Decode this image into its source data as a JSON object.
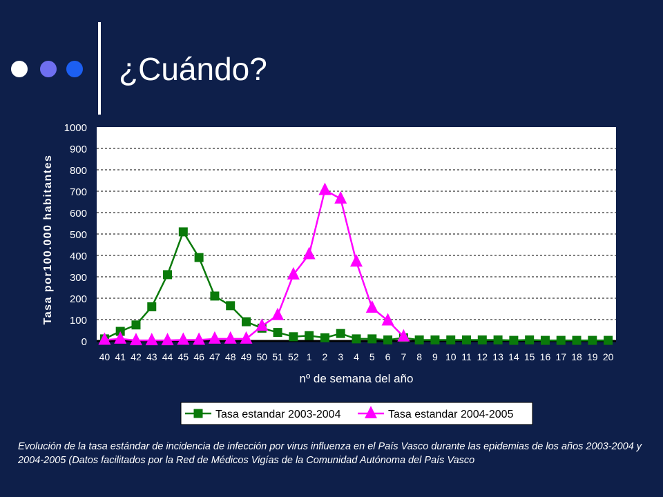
{
  "slide": {
    "title": "¿Cuándo?",
    "caption": "Evolución de la tasa estándar de incidencia de infección por virus influenza en el País Vasco durante las epidemias de los años 2003-2004 y 2004-2005 (Datos facilitados por la Red de Médicos Vigías de la Comunidad Autónoma del País Vasco",
    "colors": {
      "background": "#0e1f4a",
      "dot1": "#ffffff",
      "dot2": "#6f6ff0",
      "dot3": "#1c5ff2"
    }
  },
  "chart_data": {
    "type": "line",
    "xlabel": "nº de semana del año",
    "ylabel": "Tasa por100.000 habitantes",
    "ylim": [
      0,
      1000
    ],
    "yticks": [
      0,
      100,
      200,
      300,
      400,
      500,
      600,
      700,
      800,
      900,
      1000
    ],
    "grid": true,
    "legend_position": "bottom",
    "categories": [
      "40",
      "41",
      "42",
      "43",
      "44",
      "45",
      "46",
      "47",
      "48",
      "49",
      "50",
      "51",
      "52",
      "1",
      "2",
      "3",
      "4",
      "5",
      "6",
      "7",
      "8",
      "9",
      "10",
      "11",
      "12",
      "13",
      "14",
      "15",
      "16",
      "17",
      "18",
      "19",
      "20"
    ],
    "series": [
      {
        "name": "Tasa estandar 2003-2004",
        "color": "#0a7a0a",
        "marker": "square",
        "values": [
          10,
          45,
          75,
          160,
          310,
          510,
          390,
          210,
          165,
          90,
          60,
          40,
          20,
          25,
          15,
          35,
          10,
          10,
          5,
          15,
          5,
          5,
          5,
          5,
          5,
          5,
          3,
          5,
          3,
          3,
          3,
          3,
          3
        ]
      },
      {
        "name": "Tasa estandar 2004-2005",
        "color": "#ff00ff",
        "marker": "triangle",
        "values": [
          5,
          10,
          3,
          3,
          3,
          5,
          5,
          10,
          10,
          10,
          70,
          120,
          310,
          405,
          705,
          665,
          370,
          155,
          95,
          20,
          null,
          null,
          null,
          null,
          null,
          null,
          null,
          null,
          null,
          null,
          null,
          null,
          null
        ]
      }
    ]
  }
}
